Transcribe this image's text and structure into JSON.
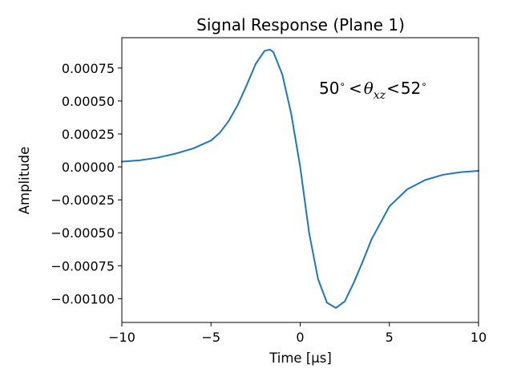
{
  "chart_data": {
    "type": "line",
    "title": "Signal Response (Plane 1)",
    "xlabel": "Time [μs]",
    "ylabel": "Amplitude",
    "xlim": [
      -10,
      10
    ],
    "ylim": [
      -0.00118,
      0.00098
    ],
    "grid": false,
    "x_ticks": [
      -10,
      -5,
      0,
      5,
      10
    ],
    "x_tick_labels": [
      "−10",
      "−5",
      "0",
      "5",
      "10"
    ],
    "y_ticks": [
      0.00075,
      0.0005,
      0.00025,
      0.0,
      -0.00025,
      -0.0005,
      -0.00075,
      -0.001
    ],
    "y_tick_labels": [
      "0.00075",
      "0.00050",
      "0.00025",
      "0.00000",
      "−0.00025",
      "−0.00050",
      "−0.00075",
      "−0.00100"
    ],
    "annotation": {
      "prefix": "50",
      "theta": "θ",
      "subscript": "xz",
      "suffix": "52"
    },
    "series": [
      {
        "color": "#1f77b4",
        "x": [
          -10,
          -9,
          -8,
          -7,
          -6,
          -5,
          -4.5,
          -4,
          -3.5,
          -3,
          -2.5,
          -2,
          -1.7,
          -1.5,
          -1,
          -0.5,
          0,
          0.5,
          1,
          1.5,
          2,
          2.5,
          3,
          3.5,
          4,
          5,
          6,
          7,
          8,
          9,
          10
        ],
        "y": [
          4e-05,
          5e-05,
          7e-05,
          0.0001,
          0.00014,
          0.0002,
          0.00026,
          0.00035,
          0.00047,
          0.00062,
          0.00078,
          0.00088,
          0.00089,
          0.00087,
          0.0007,
          0.0004,
          0.0,
          -0.0005,
          -0.00085,
          -0.00103,
          -0.00107,
          -0.00102,
          -0.00088,
          -0.00072,
          -0.00055,
          -0.0003,
          -0.00017,
          -0.0001,
          -6e-05,
          -4e-05,
          -3e-05
        ]
      }
    ]
  }
}
